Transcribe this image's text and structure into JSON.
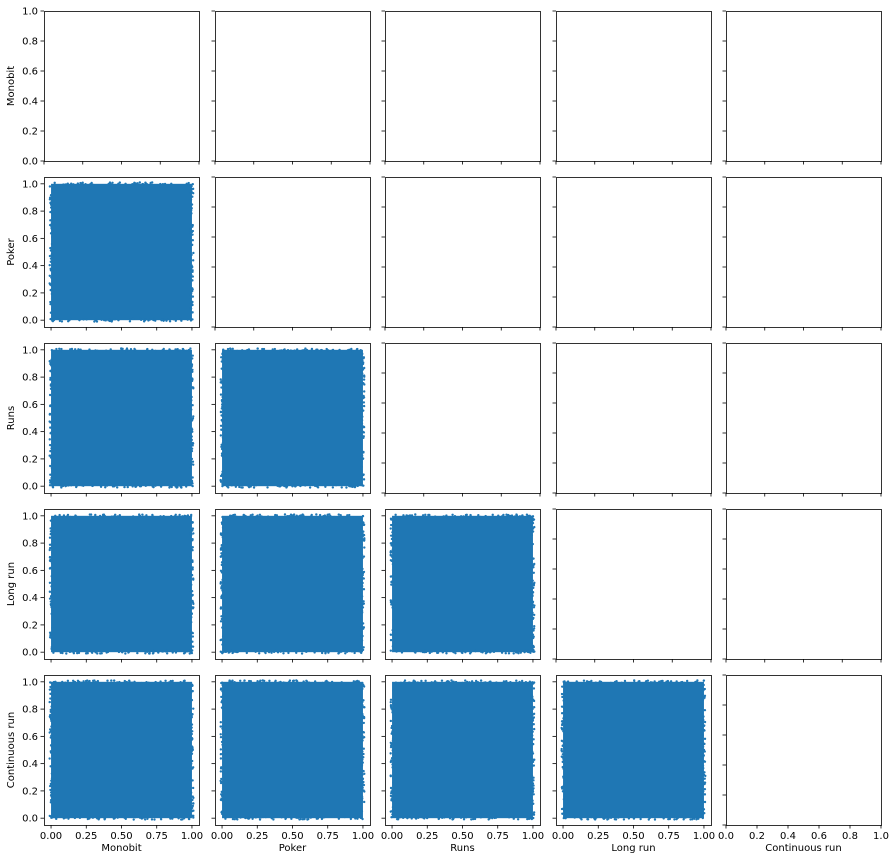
{
  "chart_data": {
    "type": "scatter",
    "layout": "5x5 pairwise scatter matrix (lower triangle filled)",
    "variables": [
      "Monobit",
      "Poker",
      "Runs",
      "Long run",
      "Continuous run"
    ],
    "marker_color": "#1f77b4",
    "axis_range": [
      0,
      1
    ],
    "ylim": [
      -0.05,
      1.05
    ],
    "xlim": [
      -0.05,
      1.05
    ],
    "empty_axis_ticks": [
      0.0,
      0.2,
      0.4,
      0.6,
      0.8,
      1.0
    ],
    "empty_axis_tick_labels": [
      "0.0",
      "0.2",
      "0.4",
      "0.6",
      "0.8",
      "1.0"
    ],
    "filled_y_ticks": [
      0.0,
      0.2,
      0.4,
      0.6,
      0.8,
      1.0
    ],
    "filled_y_tick_labels": [
      "0.0",
      "0.2",
      "0.4",
      "0.6",
      "0.8",
      "1.0"
    ],
    "filled_x_ticks": [
      0.0,
      0.25,
      0.5,
      0.75,
      1.0
    ],
    "filled_x_tick_labels": [
      "0.00",
      "0.25",
      "0.50",
      "0.75",
      "1.00"
    ],
    "grid": false,
    "panels": [
      {
        "x": "Monobit",
        "y": "Poker",
        "x_range": [
          0,
          1
        ],
        "y_range": [
          0,
          1
        ],
        "density": "dense uniform fill"
      },
      {
        "x": "Monobit",
        "y": "Runs",
        "x_range": [
          0,
          1
        ],
        "y_range": [
          0,
          1
        ],
        "density": "dense uniform fill"
      },
      {
        "x": "Poker",
        "y": "Runs",
        "x_range": [
          0,
          1
        ],
        "y_range": [
          0,
          1
        ],
        "density": "dense uniform fill"
      },
      {
        "x": "Monobit",
        "y": "Long run",
        "x_range": [
          0,
          1
        ],
        "y_range": [
          0,
          1
        ],
        "density": "dense uniform fill"
      },
      {
        "x": "Poker",
        "y": "Long run",
        "x_range": [
          0,
          1
        ],
        "y_range": [
          0,
          1
        ],
        "density": "dense uniform fill"
      },
      {
        "x": "Runs",
        "y": "Long run",
        "x_range": [
          0,
          1
        ],
        "y_range": [
          0,
          1
        ],
        "density": "dense uniform fill"
      },
      {
        "x": "Monobit",
        "y": "Continuous run",
        "x_range": [
          0,
          1
        ],
        "y_range": [
          0,
          1
        ],
        "density": "dense uniform fill"
      },
      {
        "x": "Poker",
        "y": "Continuous run",
        "x_range": [
          0,
          1
        ],
        "y_range": [
          0,
          1
        ],
        "density": "dense uniform fill"
      },
      {
        "x": "Runs",
        "y": "Continuous run",
        "x_range": [
          0,
          1
        ],
        "y_range": [
          0,
          1
        ],
        "density": "dense uniform fill"
      },
      {
        "x": "Long run",
        "y": "Continuous run",
        "x_range": [
          0,
          1
        ],
        "y_range": [
          0,
          1
        ],
        "density": "dense uniform fill"
      }
    ]
  }
}
